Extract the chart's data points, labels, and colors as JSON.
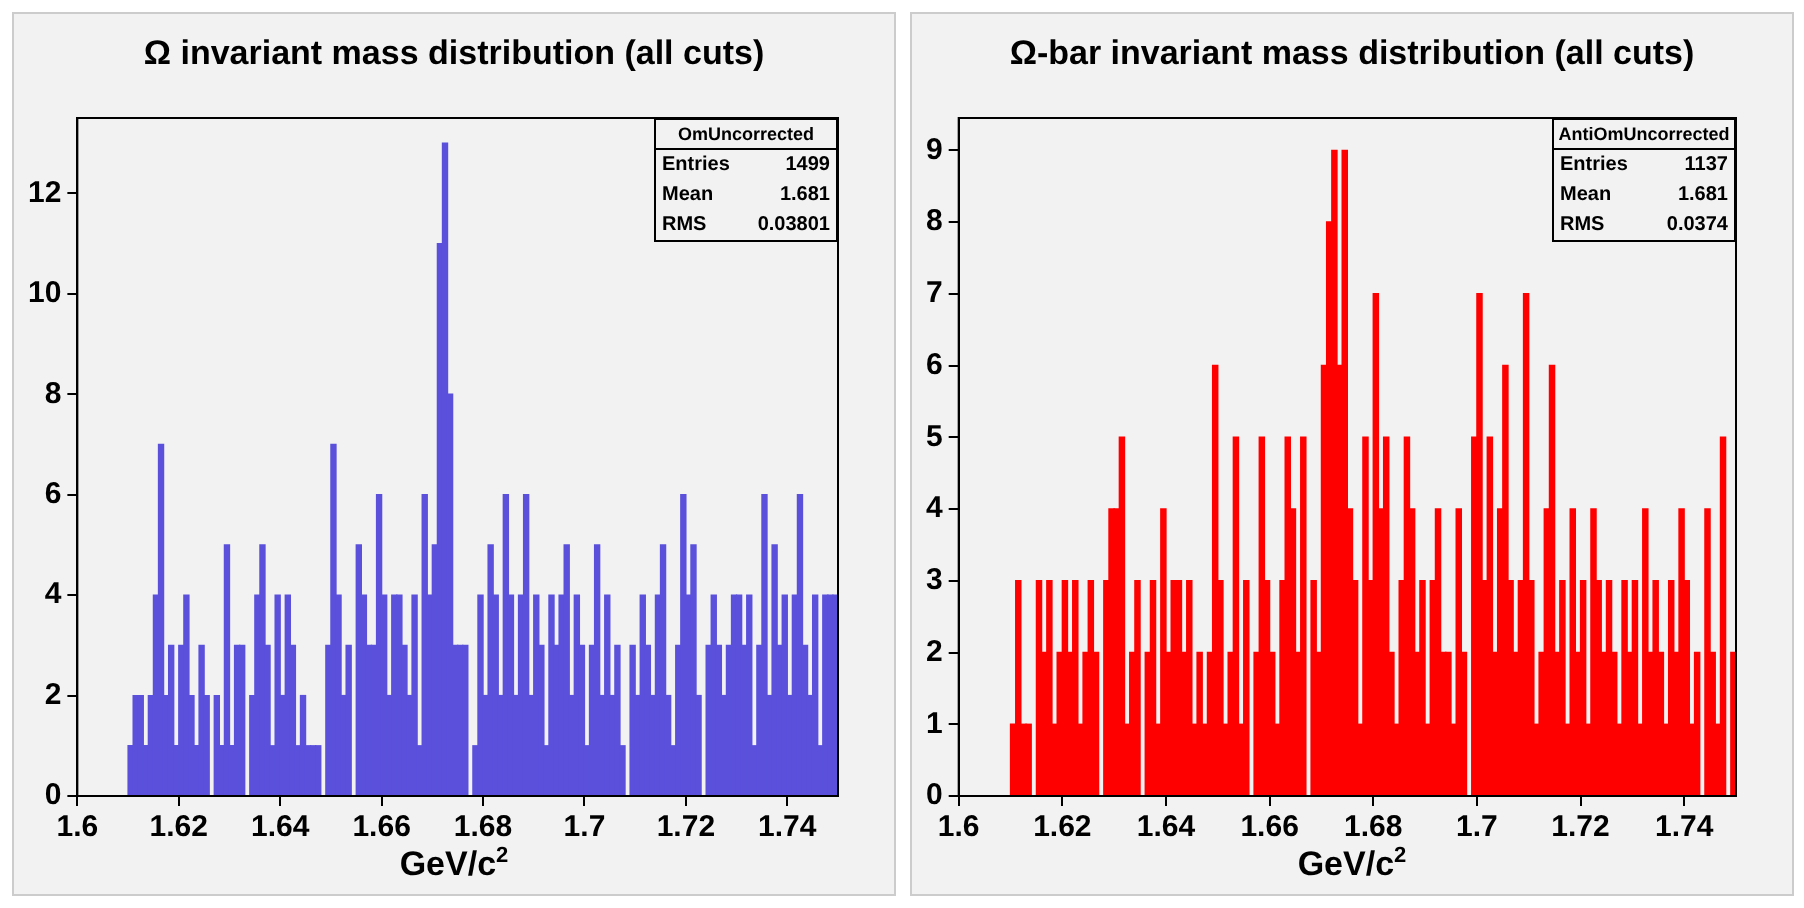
{
  "chart_data": [
    {
      "type": "histogram",
      "title": "Ω invariant mass distribution (all cuts)",
      "xlabel": "GeV/c$^{2}$",
      "bins": [
        1.6,
        1.601,
        1.602,
        1.603,
        1.604,
        1.605,
        1.606,
        1.607,
        1.608,
        1.609,
        1.61,
        1.611,
        1.612,
        1.613,
        1.614,
        1.615,
        1.616,
        1.617,
        1.618,
        1.619,
        1.62,
        1.621,
        1.622,
        1.623,
        1.624,
        1.625,
        1.626,
        1.627,
        1.628,
        1.629,
        1.63,
        1.631,
        1.632,
        1.633,
        1.634,
        1.635,
        1.636,
        1.637,
        1.638,
        1.639,
        1.64,
        1.641,
        1.642,
        1.643,
        1.644,
        1.645,
        1.646,
        1.647,
        1.648,
        1.649,
        1.65,
        1.651,
        1.652,
        1.653,
        1.654,
        1.655,
        1.656,
        1.657,
        1.658,
        1.659,
        1.66,
        1.661,
        1.662,
        1.663,
        1.664,
        1.665,
        1.666,
        1.667,
        1.668,
        1.669,
        1.67,
        1.671,
        1.672,
        1.673,
        1.674,
        1.675,
        1.676,
        1.677,
        1.678,
        1.679,
        1.68,
        1.681,
        1.682,
        1.683,
        1.684,
        1.685,
        1.686,
        1.687,
        1.688,
        1.689,
        1.69,
        1.691,
        1.692,
        1.693,
        1.694,
        1.695,
        1.696,
        1.697,
        1.698,
        1.699,
        1.7,
        1.701,
        1.702,
        1.703,
        1.704,
        1.705,
        1.706,
        1.707,
        1.708,
        1.709,
        1.71,
        1.711,
        1.712,
        1.713,
        1.714,
        1.715,
        1.716,
        1.717,
        1.718,
        1.719,
        1.72,
        1.721,
        1.722,
        1.723,
        1.724,
        1.725,
        1.726,
        1.727,
        1.728,
        1.729,
        1.73,
        1.731,
        1.732,
        1.733,
        1.734,
        1.735,
        1.736,
        1.737,
        1.738,
        1.739,
        1.74,
        1.741,
        1.742,
        1.743,
        1.744,
        1.745,
        1.746,
        1.747,
        1.748,
        1.749,
        1.75
      ],
      "values": [
        0,
        0,
        0,
        0,
        0,
        0,
        0,
        0,
        0,
        0,
        1,
        2,
        2,
        1,
        2,
        4,
        7,
        2,
        3,
        1,
        3,
        4,
        2,
        1,
        3,
        2,
        0,
        2,
        1,
        5,
        1,
        3,
        3,
        0,
        2,
        4,
        5,
        3,
        1,
        4,
        2,
        4,
        3,
        1,
        2,
        1,
        1,
        1,
        0,
        3,
        7,
        4,
        2,
        3,
        0,
        5,
        4,
        3,
        3,
        6,
        4,
        2,
        4,
        4,
        3,
        2,
        4,
        1,
        6,
        4,
        5,
        11,
        13,
        8,
        3,
        3,
        3,
        0,
        1,
        4,
        2,
        5,
        4,
        2,
        6,
        4,
        2,
        4,
        6,
        2,
        4,
        3,
        1,
        4,
        3,
        4,
        5,
        2,
        4,
        3,
        1,
        3,
        5,
        2,
        4,
        2,
        3,
        1,
        0,
        3,
        2,
        4,
        3,
        2,
        4,
        5,
        2,
        1,
        3,
        6,
        4,
        5,
        2,
        0,
        3,
        4,
        3,
        2,
        3,
        4,
        4,
        3,
        4,
        1,
        3,
        6,
        2,
        5,
        3,
        4,
        2,
        4,
        6,
        3,
        2,
        4,
        1,
        4,
        4,
        4
      ],
      "color": "#5a50dc",
      "xlim": [
        1.6,
        1.75
      ],
      "ylim": [
        0,
        13.5
      ],
      "xticks": [
        1.6,
        1.62,
        1.64,
        1.66,
        1.68,
        1.7,
        1.72,
        1.74
      ],
      "yticks": [
        0,
        2,
        4,
        6,
        8,
        10,
        12
      ],
      "grid": false,
      "legend": false,
      "annotations": [
        "OmUncorrected",
        "Entries 1499",
        "Mean 1.681",
        "RMS 0.03801"
      ]
    },
    {
      "type": "histogram",
      "title": "Ω-bar invariant mass distribution (all cuts)",
      "xlabel": "GeV/c$^{2}$",
      "bins": [
        1.6,
        1.601,
        1.602,
        1.603,
        1.604,
        1.605,
        1.606,
        1.607,
        1.608,
        1.609,
        1.61,
        1.611,
        1.612,
        1.613,
        1.614,
        1.615,
        1.616,
        1.617,
        1.618,
        1.619,
        1.62,
        1.621,
        1.622,
        1.623,
        1.624,
        1.625,
        1.626,
        1.627,
        1.628,
        1.629,
        1.63,
        1.631,
        1.632,
        1.633,
        1.634,
        1.635,
        1.636,
        1.637,
        1.638,
        1.639,
        1.64,
        1.641,
        1.642,
        1.643,
        1.644,
        1.645,
        1.646,
        1.647,
        1.648,
        1.649,
        1.65,
        1.651,
        1.652,
        1.653,
        1.654,
        1.655,
        1.656,
        1.657,
        1.658,
        1.659,
        1.66,
        1.661,
        1.662,
        1.663,
        1.664,
        1.665,
        1.666,
        1.667,
        1.668,
        1.669,
        1.67,
        1.671,
        1.672,
        1.673,
        1.674,
        1.675,
        1.676,
        1.677,
        1.678,
        1.679,
        1.68,
        1.681,
        1.682,
        1.683,
        1.684,
        1.685,
        1.686,
        1.687,
        1.688,
        1.689,
        1.69,
        1.691,
        1.692,
        1.693,
        1.694,
        1.695,
        1.696,
        1.697,
        1.698,
        1.699,
        1.7,
        1.701,
        1.702,
        1.703,
        1.704,
        1.705,
        1.706,
        1.707,
        1.708,
        1.709,
        1.71,
        1.711,
        1.712,
        1.713,
        1.714,
        1.715,
        1.716,
        1.717,
        1.718,
        1.719,
        1.72,
        1.721,
        1.722,
        1.723,
        1.724,
        1.725,
        1.726,
        1.727,
        1.728,
        1.729,
        1.73,
        1.731,
        1.732,
        1.733,
        1.734,
        1.735,
        1.736,
        1.737,
        1.738,
        1.739,
        1.74,
        1.741,
        1.742,
        1.743,
        1.744,
        1.745,
        1.746,
        1.747,
        1.748,
        1.749,
        1.75
      ],
      "values": [
        0,
        0,
        0,
        0,
        0,
        0,
        0,
        0,
        0,
        0,
        1,
        3,
        1,
        1,
        0,
        3,
        2,
        3,
        1,
        2,
        3,
        2,
        3,
        1,
        2,
        3,
        2,
        0,
        3,
        4,
        4,
        5,
        1,
        2,
        3,
        0,
        2,
        3,
        1,
        4,
        2,
        3,
        3,
        2,
        3,
        1,
        2,
        1,
        2,
        6,
        3,
        1,
        2,
        5,
        1,
        3,
        0,
        2,
        5,
        3,
        2,
        1,
        3,
        5,
        4,
        2,
        5,
        0,
        3,
        2,
        6,
        8,
        9,
        6,
        9,
        4,
        3,
        1,
        5,
        3,
        7,
        4,
        5,
        2,
        1,
        3,
        5,
        4,
        2,
        3,
        1,
        3,
        4,
        2,
        2,
        1,
        4,
        2,
        0,
        5,
        7,
        3,
        5,
        2,
        4,
        6,
        3,
        2,
        3,
        7,
        3,
        1,
        2,
        4,
        6,
        2,
        3,
        1,
        4,
        2,
        3,
        1,
        4,
        3,
        2,
        3,
        2,
        1,
        3,
        2,
        3,
        1,
        4,
        2,
        3,
        2,
        1,
        3,
        2,
        4,
        3,
        1,
        2,
        0,
        4,
        2,
        1,
        5,
        0,
        2
      ],
      "color": "#ff0000",
      "xlim": [
        1.6,
        1.75
      ],
      "ylim": [
        0,
        9.45
      ],
      "xticks": [
        1.6,
        1.62,
        1.64,
        1.66,
        1.68,
        1.7,
        1.72,
        1.74
      ],
      "yticks": [
        0,
        1,
        2,
        3,
        4,
        5,
        6,
        7,
        8,
        9
      ],
      "grid": false,
      "legend": false,
      "annotations": [
        "AntiOmUncorrected",
        "Entries 1137",
        "Mean 1.681",
        "RMS 0.0374"
      ]
    }
  ]
}
